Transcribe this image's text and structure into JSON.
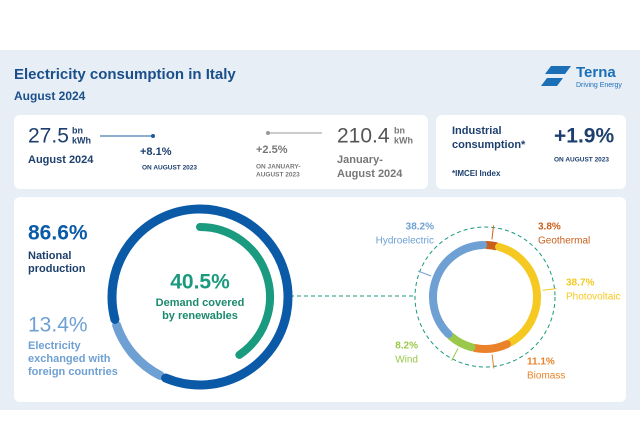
{
  "header": {
    "title": "Electricity consumption in Italy",
    "subtitle": "August 2024",
    "logo": {
      "name": "Terna",
      "tagline": "Driving Energy"
    }
  },
  "monthly": {
    "value": 27.5,
    "unit": [
      "bn",
      "kWh"
    ],
    "period": "August 2024",
    "change": "+8.1%",
    "change_ref": "ON AUGUST 2023"
  },
  "ytd": {
    "value": 210.4,
    "unit": [
      "bn",
      "kWh"
    ],
    "period": [
      "January-",
      "August 2024"
    ],
    "change": "+2.5%",
    "change_ref": [
      "ON JANUARY-",
      "AUGUST 2023"
    ]
  },
  "industrial": {
    "label": [
      "Industrial",
      "consumption*"
    ],
    "change": "+1.9%",
    "change_ref": "ON AUGUST 2023",
    "note": "*IMCEI Index"
  },
  "demand": {
    "national": {
      "value": 86.6,
      "label": "86.6%",
      "text": [
        "National",
        "production"
      ]
    },
    "foreign": {
      "value": 13.4,
      "label": "13.4%",
      "text": [
        "Electricity",
        "exchanged with",
        "foreign countries"
      ]
    },
    "renewables": {
      "value": 40.5,
      "label": "40.5%",
      "text": [
        "Demand covered",
        "by renewables"
      ]
    }
  },
  "renewables_mix": [
    {
      "name": "Geothermal",
      "value": 3.8,
      "label": "3.8%",
      "color": "#c8601b"
    },
    {
      "name": "Photovoltaic",
      "value": 38.7,
      "label": "38.7%",
      "color": "#f6c922"
    },
    {
      "name": "Biomass",
      "value": 11.1,
      "label": "11.1%",
      "color": "#e9822a"
    },
    {
      "name": "Wind",
      "value": 8.2,
      "label": "8.2%",
      "color": "#9ac84a"
    },
    {
      "name": "Hydroelectric",
      "value": 38.2,
      "label": "38.2%",
      "color": "#6fa0d4"
    }
  ]
}
